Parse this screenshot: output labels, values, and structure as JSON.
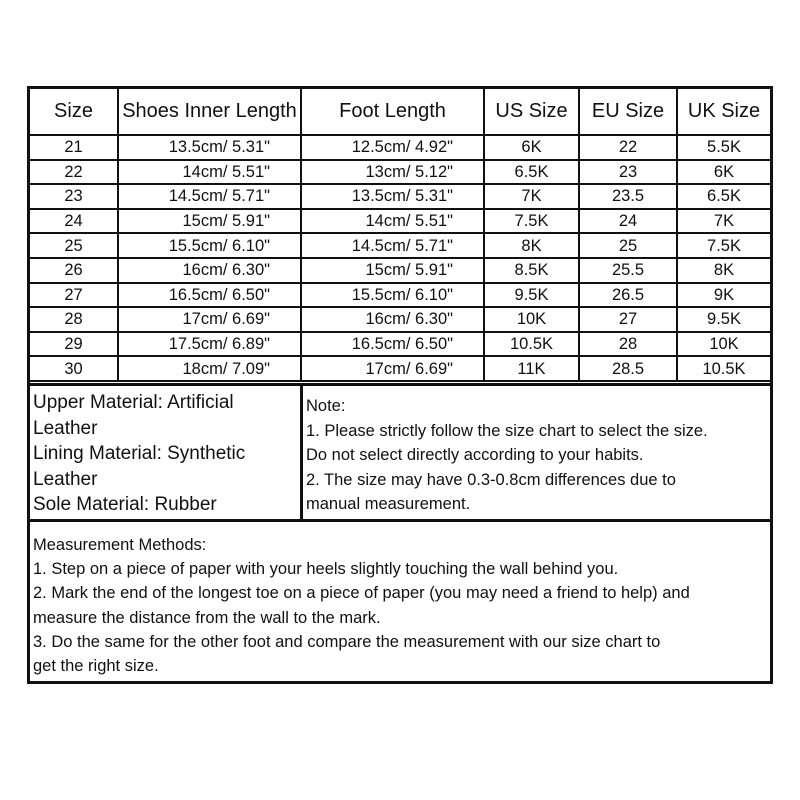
{
  "table": {
    "headers": [
      "Size",
      "Shoes Inner Length",
      "Foot Length",
      "US Size",
      "EU Size",
      "UK Size"
    ],
    "rows": [
      [
        "21",
        "13.5cm/ 5.31\"",
        "12.5cm/ 4.92\"",
        "6K",
        "22",
        "5.5K"
      ],
      [
        "22",
        "14cm/ 5.51\"",
        "13cm/ 5.12\"",
        "6.5K",
        "23",
        "6K"
      ],
      [
        "23",
        "14.5cm/ 5.71\"",
        "13.5cm/ 5.31\"",
        "7K",
        "23.5",
        "6.5K"
      ],
      [
        "24",
        "15cm/ 5.91\"",
        "14cm/ 5.51\"",
        "7.5K",
        "24",
        "7K"
      ],
      [
        "25",
        "15.5cm/ 6.10\"",
        "14.5cm/ 5.71\"",
        "8K",
        "25",
        "7.5K"
      ],
      [
        "26",
        "16cm/ 6.30\"",
        "15cm/ 5.91\"",
        "8.5K",
        "25.5",
        "8K"
      ],
      [
        "27",
        "16.5cm/ 6.50\"",
        "15.5cm/ 6.10\"",
        "9.5K",
        "26.5",
        "9K"
      ],
      [
        "28",
        "17cm/ 6.69\"",
        "16cm/ 6.30\"",
        "10K",
        "27",
        "9.5K"
      ],
      [
        "29",
        "17.5cm/ 6.89\"",
        "16.5cm/ 6.50\"",
        "10.5K",
        "28",
        "10K"
      ],
      [
        "30",
        "18cm/ 7.09\"",
        "17cm/ 6.69\"",
        "11K",
        "28.5",
        "10.5K"
      ]
    ]
  },
  "materials": [
    "Upper Material: Artificial",
    "Leather",
    "Lining Material: Synthetic",
    "Leather",
    "Sole Material: Rubber"
  ],
  "note": [
    "Note:",
    "1. Please strictly follow the size chart to select the size.",
    "Do not select directly according to your habits.",
    "2. The size may have 0.3-0.8cm differences due to",
    "manual measurement."
  ],
  "measurement": [
    "Measurement Methods:",
    "1. Step on a piece of paper with your heels slightly touching the wall behind you.",
    "2. Mark the end of the longest toe on a piece of paper (you may need a friend to help) and",
    "measure the distance from the wall to the mark.",
    "3. Do the same for the other foot and compare the measurement with our size chart to",
    "get the right size."
  ]
}
